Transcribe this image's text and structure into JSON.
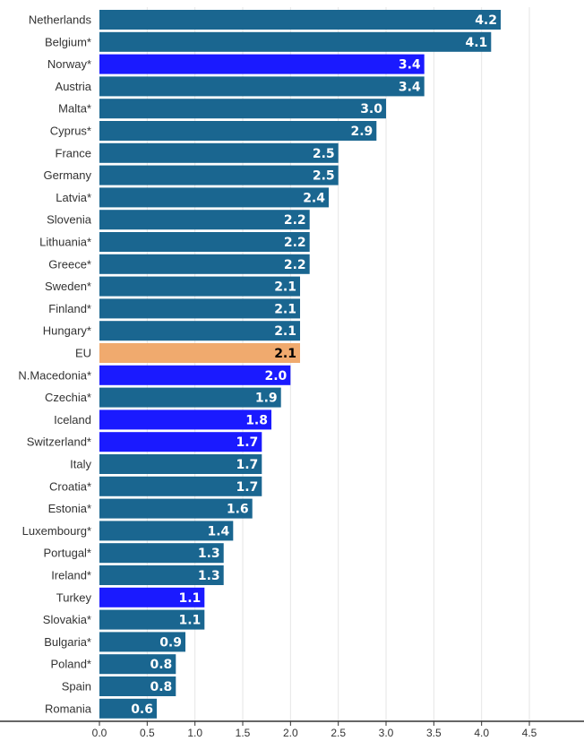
{
  "chart_data": {
    "type": "bar",
    "orientation": "horizontal",
    "categories": [
      "Netherlands",
      "Belgium*",
      "Norway*",
      "Austria",
      "Malta*",
      "Cyprus*",
      "France",
      "Germany",
      "Latvia*",
      "Slovenia",
      "Lithuania*",
      "Greece*",
      "Sweden*",
      "Finland*",
      "Hungary*",
      "EU",
      "N.Macedonia*",
      "Czechia*",
      "Iceland",
      "Switzerland*",
      "Italy",
      "Croatia*",
      "Estonia*",
      "Luxembourg*",
      "Portugal*",
      "Ireland*",
      "Turkey",
      "Slovakia*",
      "Bulgaria*",
      "Poland*",
      "Spain",
      "Romania"
    ],
    "values": [
      4.2,
      4.1,
      3.4,
      3.4,
      3.0,
      2.9,
      2.5,
      2.5,
      2.4,
      2.2,
      2.2,
      2.2,
      2.1,
      2.1,
      2.1,
      2.1,
      2.0,
      1.9,
      1.8,
      1.7,
      1.7,
      1.7,
      1.6,
      1.4,
      1.3,
      1.3,
      1.1,
      1.1,
      0.9,
      0.8,
      0.8,
      0.6
    ],
    "value_labels": [
      "4.2",
      "4.1",
      "3.4",
      "3.4",
      "3.0",
      "2.9",
      "2.5",
      "2.5",
      "2.4",
      "2.2",
      "2.2",
      "2.2",
      "2.1",
      "2.1",
      "2.1",
      "2.1",
      "2.0",
      "1.9",
      "1.8",
      "1.7",
      "1.7",
      "1.7",
      "1.6",
      "1.4",
      "1.3",
      "1.3",
      "1.1",
      "1.1",
      "0.9",
      "0.8",
      "0.8",
      "0.6"
    ],
    "bar_groups": [
      "eu_member",
      "eu_member",
      "non_eu",
      "eu_member",
      "eu_member",
      "eu_member",
      "eu_member",
      "eu_member",
      "eu_member",
      "eu_member",
      "eu_member",
      "eu_member",
      "eu_member",
      "eu_member",
      "eu_member",
      "eu_average",
      "non_eu",
      "eu_member",
      "non_eu",
      "non_eu",
      "eu_member",
      "eu_member",
      "eu_member",
      "eu_member",
      "eu_member",
      "eu_member",
      "non_eu",
      "eu_member",
      "eu_member",
      "eu_member",
      "eu_member",
      "eu_member"
    ],
    "colors": {
      "eu_member": "#1a6690",
      "non_eu": "#1a1aff",
      "eu_average": "#f0aa6e",
      "label_light": "#ffffff",
      "label_dark": "#000000",
      "grid": "#e6e6e6",
      "axis": "#333333"
    },
    "x_ticks": [
      "0.0",
      "0.5",
      "1.0",
      "1.5",
      "2.0",
      "2.5",
      "3.0",
      "3.5",
      "4.0",
      "4.5"
    ],
    "xlim": [
      0,
      4.5
    ],
    "grid": true,
    "title": "",
    "xlabel": "",
    "ylabel": ""
  }
}
